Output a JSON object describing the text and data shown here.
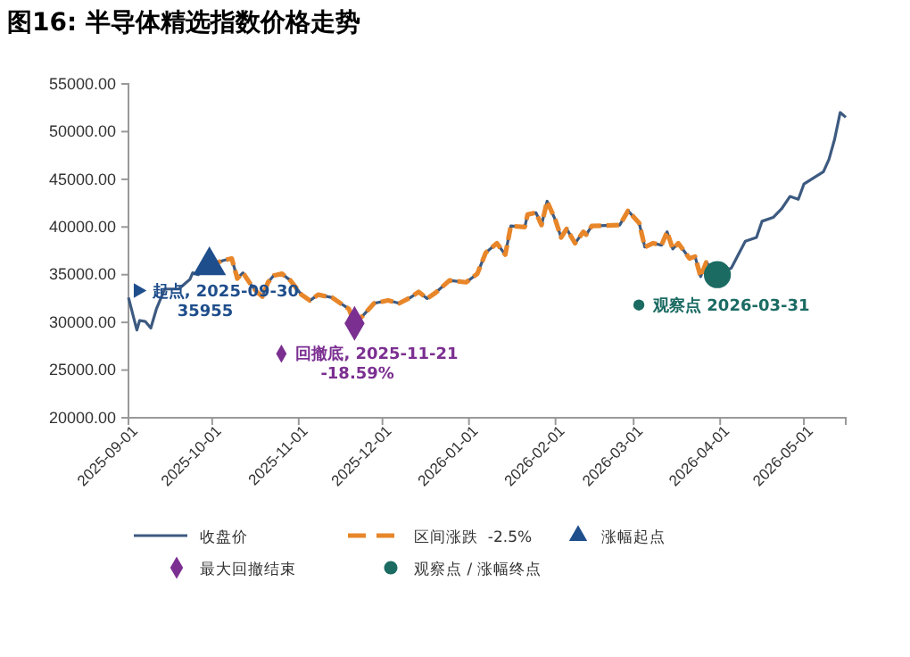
{
  "chart_data": {
    "type": "line",
    "title": "图16: 半导体精选指数价格走势",
    "xlim": [
      "2025-09-01",
      "2026-05-16"
    ],
    "xticks": [
      "2025-09-01",
      "2025-10-01",
      "2025-11-01",
      "2025-12-01",
      "2026-01-01",
      "2026-02-01",
      "2026-03-01",
      "2026-04-01",
      "2026-05-01"
    ],
    "ylim": [
      20000,
      55000
    ],
    "yticks": [
      {
        "value": 20000,
        "label": "20000.00"
      },
      {
        "value": 25000,
        "label": "25000.00"
      },
      {
        "value": 30000,
        "label": "30000.00"
      },
      {
        "value": 35000,
        "label": "35000.00"
      },
      {
        "value": 40000,
        "label": "40000.00"
      },
      {
        "value": 45000,
        "label": "45000.00"
      },
      {
        "value": 50000,
        "label": "50000.00"
      },
      {
        "value": 55000,
        "label": "55000.00"
      }
    ],
    "grid": false,
    "legend": "bottom",
    "x": [
      "2025-09-01",
      "2025-09-04",
      "2025-09-05",
      "2025-09-07",
      "2025-09-09",
      "2025-09-11",
      "2025-09-14",
      "2025-09-19",
      "2025-09-23",
      "2025-09-24",
      "2025-09-26",
      "2025-09-29",
      "2025-09-30",
      "2025-10-05",
      "2025-10-08",
      "2025-10-10",
      "2025-10-12",
      "2025-10-15",
      "2025-10-17",
      "2025-10-19",
      "2025-10-21",
      "2025-10-23",
      "2025-10-26",
      "2025-10-29",
      "2025-11-02",
      "2025-11-05",
      "2025-11-08",
      "2025-11-13",
      "2025-11-16",
      "2025-11-19",
      "2025-11-21",
      "2025-11-24",
      "2025-11-28",
      "2025-12-03",
      "2025-12-07",
      "2025-12-11",
      "2025-12-14",
      "2025-12-17",
      "2025-12-20",
      "2025-12-25",
      "2025-12-31",
      "2026-01-04",
      "2026-01-07",
      "2026-01-11",
      "2026-01-14",
      "2026-01-16",
      "2026-01-21",
      "2026-01-22",
      "2026-01-25",
      "2026-01-27",
      "2026-01-29",
      "2026-02-01",
      "2026-02-03",
      "2026-02-05",
      "2026-02-08",
      "2026-02-11",
      "2026-02-12",
      "2026-02-14",
      "2026-02-24",
      "2026-02-27",
      "2026-03-03",
      "2026-03-05",
      "2026-03-08",
      "2026-03-11",
      "2026-03-13",
      "2026-03-15",
      "2026-03-17",
      "2026-03-21",
      "2026-03-23",
      "2026-03-25",
      "2026-03-27",
      "2026-03-29",
      "2026-03-31",
      "2026-04-05",
      "2026-04-10",
      "2026-04-14",
      "2026-04-16",
      "2026-04-20",
      "2026-04-23",
      "2026-04-26",
      "2026-04-29",
      "2026-05-01",
      "2026-05-08",
      "2026-05-10",
      "2026-05-12",
      "2026-05-14",
      "2026-05-16"
    ],
    "series": [
      {
        "name": "收盘价",
        "color": "#3d5a80",
        "line_style": "solid",
        "values": [
          32600,
          29200,
          30200,
          30100,
          29400,
          31400,
          33500,
          33500,
          34500,
          35200,
          35000,
          35900,
          35955,
          36500,
          36700,
          34600,
          35200,
          33900,
          33200,
          32700,
          34200,
          34900,
          35100,
          34400,
          32900,
          32300,
          32900,
          32600,
          32000,
          31400,
          29900,
          30700,
          32000,
          32300,
          32000,
          32600,
          33200,
          32500,
          33100,
          34400,
          34200,
          35100,
          37300,
          38300,
          37100,
          40100,
          40000,
          41300,
          41500,
          40200,
          42700,
          40700,
          38900,
          39800,
          38300,
          39500,
          39200,
          40100,
          40200,
          41700,
          40400,
          37900,
          38300,
          38100,
          39500,
          37700,
          38300,
          36700,
          36900,
          34800,
          36300,
          35700,
          35000,
          35700,
          38500,
          38900,
          40600,
          41000,
          41900,
          43200,
          42900,
          44500,
          45800,
          47100,
          49200,
          52000,
          51500
        ]
      },
      {
        "name": "区间涨跌  -2.5%",
        "color": "#e8862a",
        "line_style": "dashed",
        "values": [
          null,
          null,
          null,
          null,
          null,
          null,
          null,
          null,
          null,
          null,
          null,
          null,
          35955,
          36500,
          36700,
          34600,
          35200,
          33900,
          33200,
          32700,
          34200,
          34900,
          35100,
          34400,
          32900,
          32300,
          32900,
          32600,
          32000,
          31400,
          29900,
          30700,
          32000,
          32300,
          32000,
          32600,
          33200,
          32500,
          33100,
          34400,
          34200,
          35100,
          37300,
          38300,
          37100,
          40100,
          40000,
          41300,
          41500,
          40200,
          42700,
          40700,
          38900,
          39800,
          38300,
          39500,
          39200,
          40100,
          40200,
          41700,
          40400,
          37900,
          38300,
          38100,
          39500,
          37700,
          38300,
          36700,
          36900,
          34800,
          36300,
          35700,
          35000,
          null,
          null,
          null,
          null,
          null,
          null,
          null,
          null,
          null,
          null,
          null,
          null,
          null,
          null
        ]
      },
      {
        "name": "涨幅起点",
        "type": "scatter",
        "marker": "triangle",
        "color": "#1f4e8c",
        "x": [
          "2025-09-30"
        ],
        "values": [
          35955
        ]
      },
      {
        "name": "最大回撤结束",
        "type": "scatter",
        "marker": "diamond",
        "color": "#7b2f91",
        "x": [
          "2025-11-21"
        ],
        "values": [
          29900
        ]
      },
      {
        "name": "观察点 / 涨幅终点",
        "type": "scatter",
        "marker": "circle",
        "color": "#1b6b63",
        "x": [
          "2026-03-31"
        ],
        "values": [
          35000
        ]
      }
    ],
    "annotations": [
      {
        "text": "起点, 2025-09-30 35955",
        "x": "2025-09-30",
        "y": 35955
      },
      {
        "text": "回撤底, 2025-11-21 -18.59%",
        "x": "2025-11-21",
        "y": 29900
      },
      {
        "text": "观察点 2026-03-31",
        "x": "2026-03-31",
        "y": 35000
      }
    ]
  }
}
